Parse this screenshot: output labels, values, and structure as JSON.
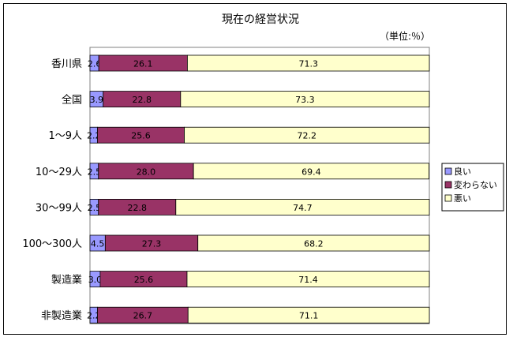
{
  "chart_data": {
    "type": "bar",
    "orientation": "horizontal-stacked-percent",
    "title": "現在の経営状況",
    "unit_note": "（単位:％）",
    "categories": [
      "香川県",
      "全国",
      "1～9人",
      "10～29人",
      "30～99人",
      "100～300人",
      "製造業",
      "非製造業"
    ],
    "series": [
      {
        "name": "良い",
        "values": [
          2.6,
          3.9,
          2.2,
          2.5,
          2.5,
          4.5,
          3.0,
          2.2
        ],
        "color": "#9999ff"
      },
      {
        "name": "変わらない",
        "values": [
          26.1,
          22.8,
          25.6,
          28.0,
          22.8,
          27.3,
          25.6,
          26.7
        ],
        "color": "#993366"
      },
      {
        "name": "悪い",
        "values": [
          71.3,
          73.3,
          72.2,
          69.4,
          74.7,
          68.2,
          71.4,
          71.1
        ],
        "color": "#ffffcc"
      }
    ],
    "xlim": [
      0,
      100
    ],
    "legend_position": "right",
    "grid": false
  }
}
